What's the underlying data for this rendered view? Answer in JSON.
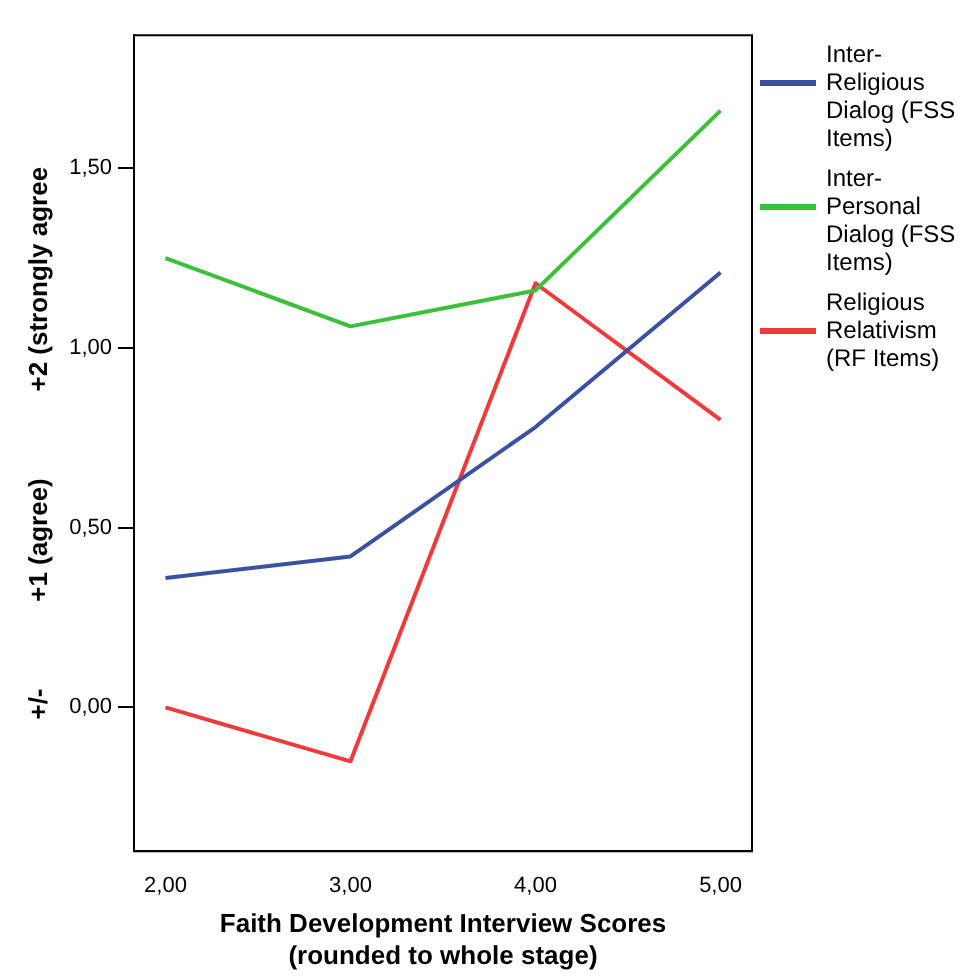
{
  "chart_data": {
    "type": "line",
    "xlabel": "Faith Development Interview Scores\n(rounded to whole stage)",
    "ylabel": "+/-            +1 (agree)            +2 (strongly agree",
    "x": [
      2,
      3,
      4,
      5
    ],
    "series": [
      {
        "name": "Inter-Religious Dialog (FSS Items)",
        "color": "#3a50a0",
        "values": [
          0.36,
          0.42,
          0.78,
          1.21
        ]
      },
      {
        "name": "Inter-Personal Dialog (FSS Items)",
        "color": "#3cc03c",
        "values": [
          1.25,
          1.06,
          1.16,
          1.66
        ]
      },
      {
        "name": "Religious Relativism (RF Items)",
        "color": "#ee3a3a",
        "values": [
          0,
          -0.15,
          1.18,
          0.8
        ]
      }
    ],
    "xlim": [
      1.83,
      5.17
    ],
    "ylim": [
      -0.4,
      1.87
    ],
    "xticks": [
      {
        "value": 2,
        "label": "2,00"
      },
      {
        "value": 3,
        "label": "3,00"
      },
      {
        "value": 4,
        "label": "4,00"
      },
      {
        "value": 5,
        "label": "5,00"
      }
    ],
    "yticks": [
      {
        "value": 0,
        "label": "0,00"
      },
      {
        "value": 0.5,
        "label": "0,50"
      },
      {
        "value": 1,
        "label": "1,00"
      },
      {
        "value": 1.5,
        "label": "1,50"
      }
    ],
    "grid": false,
    "legend": "right",
    "marker": "none",
    "line_style": "solid"
  }
}
